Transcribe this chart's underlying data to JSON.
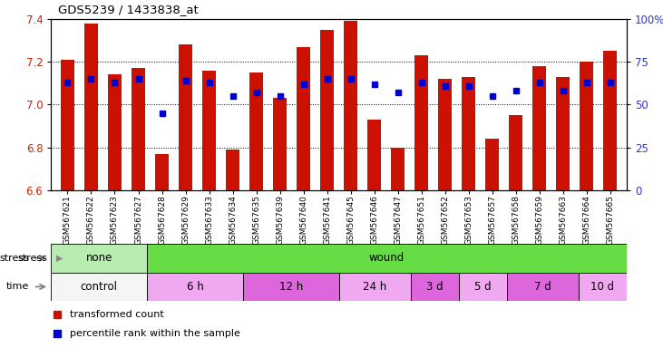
{
  "title": "GDS5239 / 1433838_at",
  "samples": [
    "GSM567621",
    "GSM567622",
    "GSM567623",
    "GSM567627",
    "GSM567628",
    "GSM567629",
    "GSM567633",
    "GSM567634",
    "GSM567635",
    "GSM567639",
    "GSM567640",
    "GSM567641",
    "GSM567645",
    "GSM567646",
    "GSM567647",
    "GSM567651",
    "GSM567652",
    "GSM567653",
    "GSM567657",
    "GSM567658",
    "GSM567659",
    "GSM567663",
    "GSM567664",
    "GSM567665"
  ],
  "red_values": [
    7.21,
    7.38,
    7.14,
    7.17,
    6.77,
    7.28,
    7.16,
    6.79,
    7.15,
    7.03,
    7.27,
    7.35,
    7.39,
    6.93,
    6.8,
    7.23,
    7.12,
    7.13,
    6.84,
    6.95,
    7.18,
    7.13,
    7.2,
    7.25
  ],
  "blue_pct": [
    63,
    65,
    63,
    65,
    45,
    64,
    63,
    55,
    57,
    55,
    62,
    65,
    65,
    62,
    57,
    63,
    61,
    61,
    55,
    58,
    63,
    58,
    63,
    63
  ],
  "ylim": [
    6.6,
    7.4
  ],
  "y_ticks": [
    6.6,
    6.8,
    7.0,
    7.2,
    7.4
  ],
  "right_yticks": [
    0,
    25,
    50,
    75,
    100
  ],
  "right_yticklabels": [
    "0",
    "25",
    "50",
    "75",
    "100%"
  ],
  "bar_color": "#cc1100",
  "dot_color": "#0000cc",
  "stress_groups": [
    {
      "label": "none",
      "start": 0,
      "end": 4,
      "color": "#b8edb0"
    },
    {
      "label": "wound",
      "start": 4,
      "end": 24,
      "color": "#66dd44"
    }
  ],
  "time_groups": [
    {
      "label": "control",
      "start": 0,
      "end": 4,
      "color": "#f5f5f5"
    },
    {
      "label": "6 h",
      "start": 4,
      "end": 8,
      "color": "#f0a8f0"
    },
    {
      "label": "12 h",
      "start": 8,
      "end": 12,
      "color": "#dd66dd"
    },
    {
      "label": "24 h",
      "start": 12,
      "end": 15,
      "color": "#f0a8f0"
    },
    {
      "label": "3 d",
      "start": 15,
      "end": 17,
      "color": "#dd66dd"
    },
    {
      "label": "5 d",
      "start": 17,
      "end": 19,
      "color": "#f0a8f0"
    },
    {
      "label": "7 d",
      "start": 19,
      "end": 22,
      "color": "#dd66dd"
    },
    {
      "label": "10 d",
      "start": 22,
      "end": 24,
      "color": "#f0a8f0"
    }
  ],
  "legend": [
    {
      "label": "transformed count",
      "color": "#cc1100"
    },
    {
      "label": "percentile rank within the sample",
      "color": "#0000cc"
    }
  ]
}
